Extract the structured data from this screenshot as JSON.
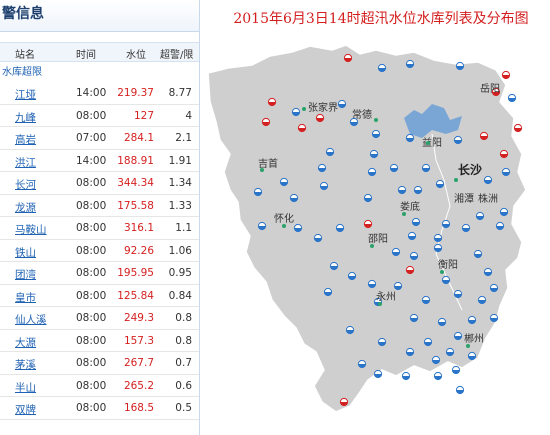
{
  "panel": {
    "title": "警信息",
    "headers": {
      "station": "站名",
      "time": "时间",
      "level": "水位",
      "over": "超警/限"
    },
    "section": "水库超限",
    "rows": [
      {
        "name": "江垭",
        "time": "14:00",
        "level": "219.37",
        "over": "8.77"
      },
      {
        "name": "九峰",
        "time": "08:00",
        "level": "127",
        "over": "4"
      },
      {
        "name": "高岩",
        "time": "07:00",
        "level": "284.1",
        "over": "2.1"
      },
      {
        "name": "洪江",
        "time": "14:00",
        "level": "188.91",
        "over": "1.91"
      },
      {
        "name": "长河",
        "time": "08:00",
        "level": "344.34",
        "over": "1.34"
      },
      {
        "name": "龙源",
        "time": "08:00",
        "level": "175.58",
        "over": "1.33"
      },
      {
        "name": "马鞍山",
        "time": "08:00",
        "level": "316.1",
        "over": "1.1"
      },
      {
        "name": "铁山",
        "time": "08:00",
        "level": "92.26",
        "over": "1.06"
      },
      {
        "name": "团湾",
        "time": "08:00",
        "level": "195.95",
        "over": "0.95"
      },
      {
        "name": "皇市",
        "time": "08:00",
        "level": "125.84",
        "over": "0.84"
      },
      {
        "name": "仙人溪",
        "time": "08:00",
        "level": "249.3",
        "over": "0.8"
      },
      {
        "name": "大源",
        "time": "08:00",
        "level": "157.3",
        "over": "0.8"
      },
      {
        "name": "茅溪",
        "time": "08:00",
        "level": "267.7",
        "over": "0.7"
      },
      {
        "name": "半山",
        "time": "08:00",
        "level": "265.2",
        "over": "0.6"
      },
      {
        "name": "双牌",
        "time": "08:00",
        "level": "168.5",
        "over": "0.5"
      }
    ]
  },
  "map": {
    "title": "2015年6月3日14时超汛水位水库列表及分布图",
    "cities": {
      "zhangjiajie": "张家界",
      "changde": "常德",
      "yueyang": "岳阳",
      "yiyang": "益阳",
      "jishou": "吉首",
      "changsha": "长沙",
      "xiangtan": "湘潭",
      "zhuzhou": "株洲",
      "huaihua": "怀化",
      "loudi": "娄底",
      "shaoyang": "邵阳",
      "hengyang": "衡阳",
      "yongzhou": "永州",
      "chenzhou": "郴州"
    },
    "colors": {
      "over_limit": "#d42020",
      "normal": "#2a74c9",
      "province": "#cfcfcf",
      "lake": "#7aa6d6"
    }
  }
}
